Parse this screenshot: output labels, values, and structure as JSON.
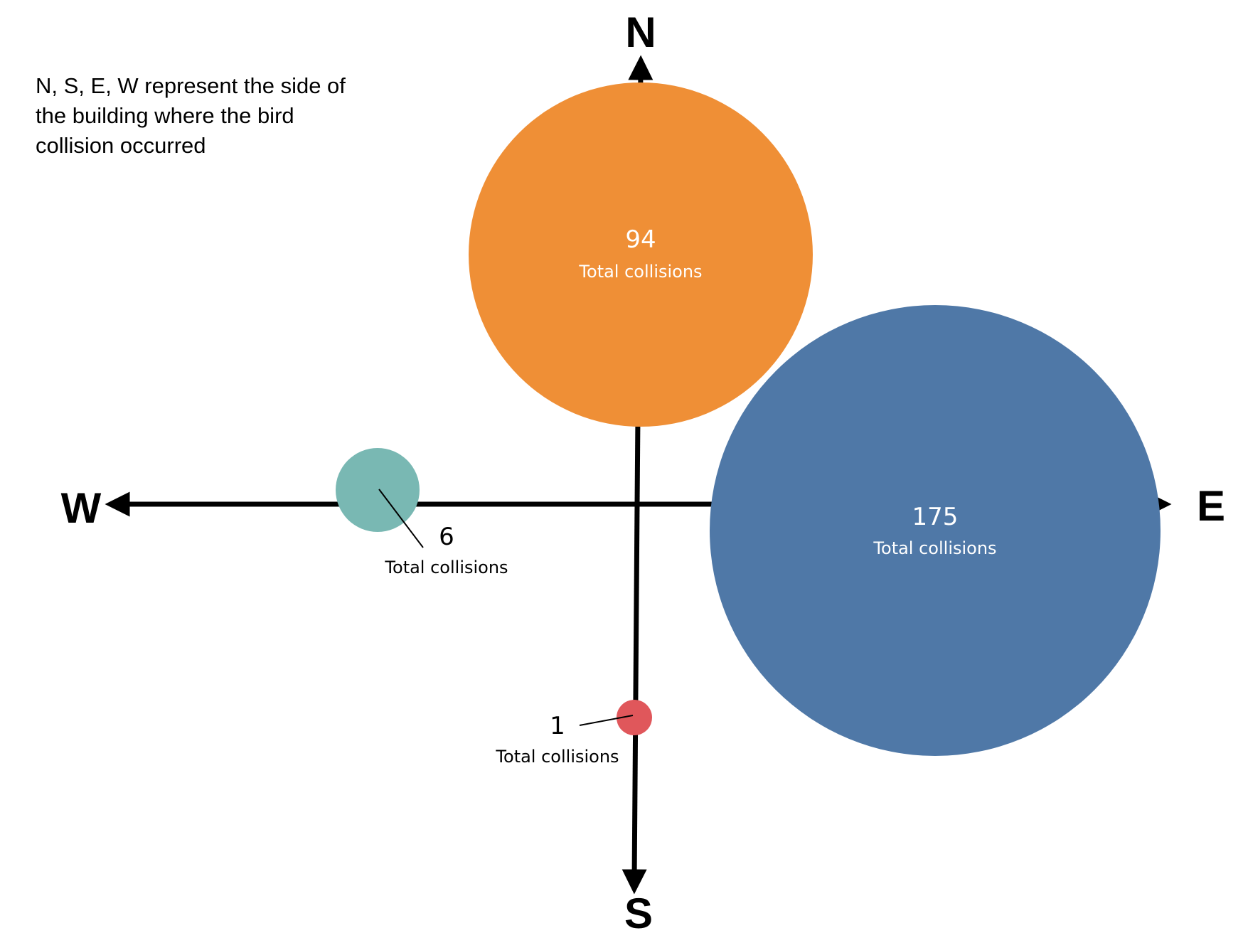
{
  "note": "N, S, E, W represent the side of the building where the bird collision occurred",
  "axes": {
    "north": "N",
    "south": "S",
    "east": "E",
    "west": "W"
  },
  "chart_data": {
    "type": "bubble",
    "value_label": "Total collisions",
    "series": [
      {
        "name": "N",
        "value": 94,
        "label": "Total collisions",
        "color": "#EF8F36"
      },
      {
        "name": "E",
        "value": 175,
        "label": "Total collisions",
        "color": "#4F78A7"
      },
      {
        "name": "W",
        "value": 6,
        "label": "Total collisions",
        "color": "#79B8B3"
      },
      {
        "name": "S",
        "value": 1,
        "label": "Total collisions",
        "color": "#E0575B"
      }
    ]
  }
}
